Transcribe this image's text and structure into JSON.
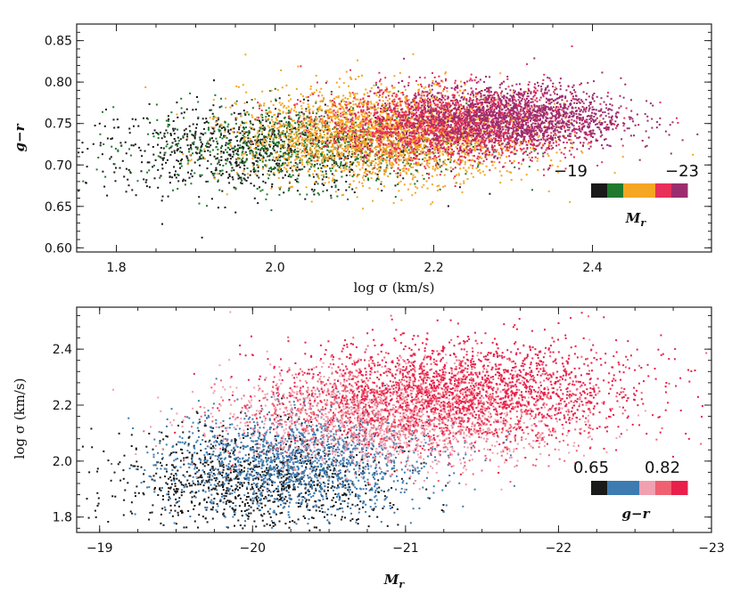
{
  "chart_data": [
    {
      "type": "scatter",
      "name": "color-sigma",
      "xlabel": "log σ (km/s)",
      "ylabel": "g−r",
      "xlim": [
        1.75,
        2.55
      ],
      "ylim": [
        0.595,
        0.87
      ],
      "x_ticks": [
        1.8,
        2.0,
        2.2,
        2.4
      ],
      "x_tick_labels": [
        "1.8",
        "2.0",
        "2.2",
        "2.4"
      ],
      "y_ticks": [
        0.6,
        0.65,
        0.7,
        0.75,
        0.8,
        0.85
      ],
      "y_tick_labels": [
        "0.60",
        "0.65",
        "0.70",
        "0.75",
        "0.80",
        "0.85"
      ],
      "colorbar": {
        "label": "M",
        "label_sub": "r",
        "low_label": "−19",
        "high_label": "−23",
        "colors": [
          "#1a1a1a",
          "#1f7a2e",
          "#f5a623",
          "#f5a623",
          "#e8305a",
          "#9b2d6e"
        ],
        "placement": "lower-right"
      },
      "series": [
        {
          "name": "Mr ≈ −19",
          "color": "#1a1a1a",
          "x_center": 1.97,
          "x_spread": 0.11,
          "y_center": 0.718,
          "y_spread": 0.026,
          "count": 900
        },
        {
          "name": "Mr ≈ −20",
          "color": "#1f7a2e",
          "x_center": 2.04,
          "x_spread": 0.1,
          "y_center": 0.725,
          "y_spread": 0.025,
          "count": 900
        },
        {
          "name": "Mr ≈ −21",
          "color": "#f5a623",
          "x_center": 2.14,
          "x_spread": 0.09,
          "y_center": 0.738,
          "y_spread": 0.027,
          "count": 2600
        },
        {
          "name": "Mr ≈ −22",
          "color": "#e8305a",
          "x_center": 2.22,
          "x_spread": 0.08,
          "y_center": 0.75,
          "y_spread": 0.022,
          "count": 1900
        },
        {
          "name": "Mr ≈ −23",
          "color": "#9b2d6e",
          "x_center": 2.3,
          "x_spread": 0.07,
          "y_center": 0.758,
          "y_spread": 0.02,
          "count": 1700
        }
      ]
    },
    {
      "type": "scatter",
      "name": "sigma-magnitude",
      "xlabel": "M",
      "xlabel_sub": "r",
      "ylabel": "log σ (km/s)",
      "xlim": [
        -18.85,
        -23.0
      ],
      "ylim": [
        1.745,
        2.55
      ],
      "x_ticks": [
        -19,
        -20,
        -21,
        -22,
        -23
      ],
      "x_tick_labels": [
        "−19",
        "−20",
        "−21",
        "−22",
        "−23"
      ],
      "y_ticks": [
        1.8,
        2.0,
        2.2,
        2.4
      ],
      "y_tick_labels": [
        "1.8",
        "2.0",
        "2.2",
        "2.4"
      ],
      "colorbar": {
        "label": "g−r",
        "low_label": "0.65",
        "high_label": "0.82",
        "colors": [
          "#1a1a1a",
          "#3d7bb0",
          "#3d7bb0",
          "#f0a0b0",
          "#f06070",
          "#e8204a"
        ],
        "placement": "lower-right"
      },
      "series": [
        {
          "name": "g−r ≈ 0.65",
          "color": "#1a1a1a",
          "x_center": -20.0,
          "x_spread": 0.45,
          "y_center": 1.93,
          "y_spread": 0.09,
          "count": 1100
        },
        {
          "name": "g−r ≈ 0.70",
          "color": "#3d7bb0",
          "x_center": -20.3,
          "x_spread": 0.45,
          "y_center": 2.0,
          "y_spread": 0.09,
          "count": 1500
        },
        {
          "name": "g−r ≈ 0.75",
          "color": "#f0a0b0",
          "x_center": -20.9,
          "x_spread": 0.55,
          "y_center": 2.15,
          "y_spread": 0.09,
          "count": 1400
        },
        {
          "name": "g−r ≈ 0.78",
          "color": "#f06070",
          "x_center": -21.1,
          "x_spread": 0.55,
          "y_center": 2.2,
          "y_spread": 0.09,
          "count": 1300
        },
        {
          "name": "g−r ≈ 0.82",
          "color": "#e8204a",
          "x_center": -21.4,
          "x_spread": 0.6,
          "y_center": 2.26,
          "y_spread": 0.09,
          "count": 1700
        }
      ]
    }
  ]
}
